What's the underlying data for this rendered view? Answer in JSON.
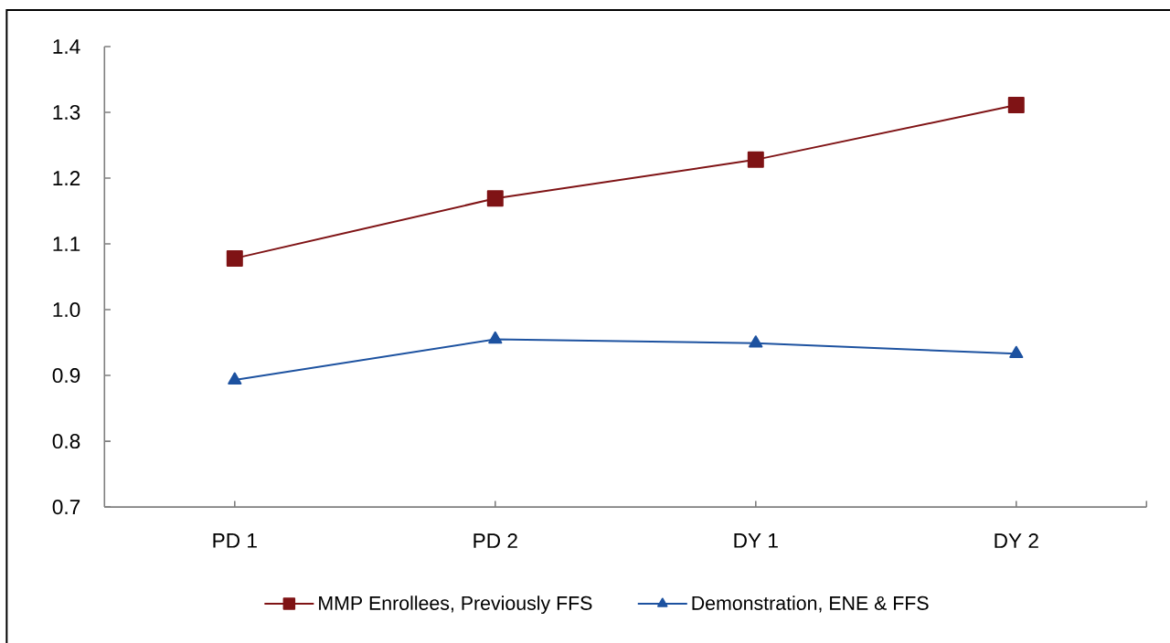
{
  "chart_data": {
    "type": "line",
    "categories": [
      "PD 1",
      "PD 2",
      "DY 1",
      "DY 2"
    ],
    "series": [
      {
        "name": "MMP Enrollees, Previously FFS",
        "color": "#7f1315",
        "marker": "square",
        "values": [
          1.078,
          1.169,
          1.228,
          1.311
        ]
      },
      {
        "name": "Demonstration, ENE & FFS",
        "color": "#1d52a0",
        "marker": "triangle",
        "values": [
          0.893,
          0.955,
          0.949,
          0.933
        ]
      }
    ],
    "ylim": [
      0.7,
      1.4
    ],
    "yticks": [
      0.7,
      0.8,
      0.9,
      {
        "value": 1,
        "label": "1.0"
      },
      1.1,
      1.2,
      1.3,
      1.4
    ],
    "legend": "bottom",
    "line_style": "solid"
  }
}
